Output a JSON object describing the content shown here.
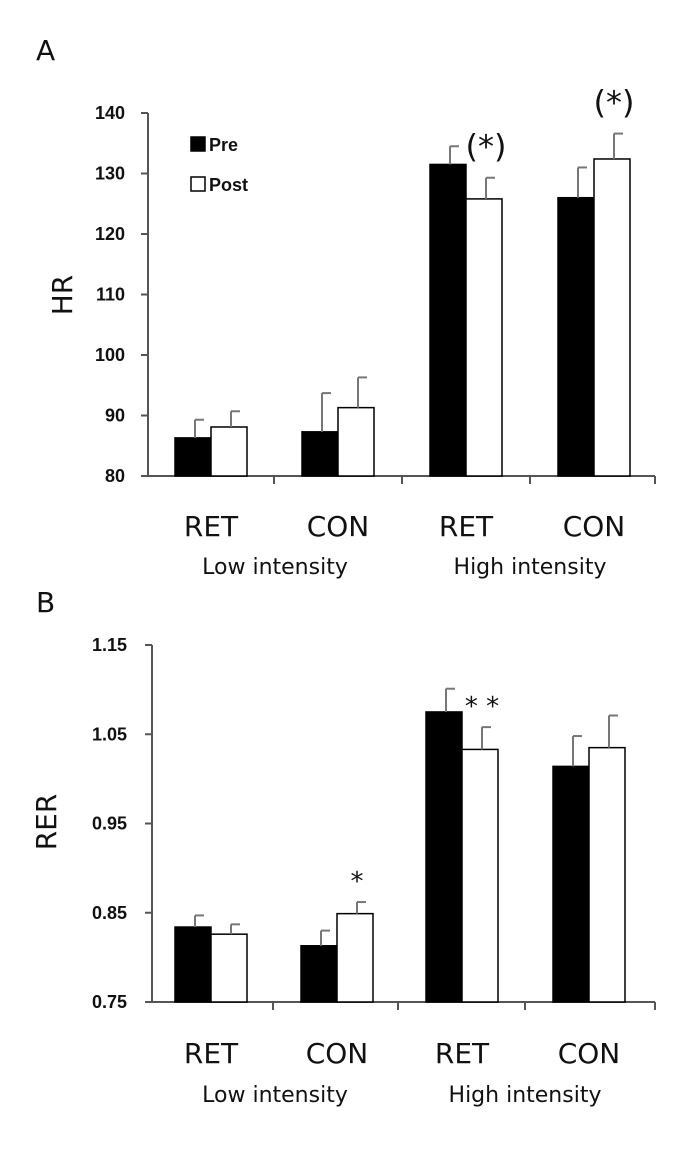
{
  "chart_data": [
    {
      "type": "bar",
      "panel": "A",
      "ylabel": "HR",
      "ylim": [
        80,
        140
      ],
      "yticks": [
        "80",
        "90",
        "100",
        "110",
        "120",
        "130",
        "140"
      ],
      "categories": [
        "RET",
        "CON",
        "RET",
        "CON"
      ],
      "groups": [
        "Low intensity",
        "High intensity"
      ],
      "legend": {
        "placement": "top-left",
        "entries": [
          "Pre",
          "Post"
        ]
      },
      "series": [
        {
          "name": "Pre",
          "color": "#000000",
          "values": [
            86.3,
            87.3,
            131.5,
            126.0
          ],
          "errors": [
            3.0,
            6.4,
            3.0,
            5.0
          ]
        },
        {
          "name": "Post",
          "color": "#ffffff",
          "values": [
            88.1,
            91.3,
            125.8,
            132.4
          ],
          "errors": [
            2.6,
            5.0,
            3.5,
            4.2
          ]
        }
      ],
      "annotations": [
        {
          "text": "(*)",
          "category_index": 2,
          "series": "Post"
        },
        {
          "text": "(*)",
          "category_index": 3,
          "series": "Post"
        }
      ]
    },
    {
      "type": "bar",
      "panel": "B",
      "ylabel": "RER",
      "ylim": [
        0.75,
        1.15
      ],
      "yticks": [
        "0.75",
        "0.85",
        "0.95",
        "1.05",
        "1.15"
      ],
      "categories": [
        "RET",
        "CON",
        "RET",
        "CON"
      ],
      "groups": [
        "Low intensity",
        "High intensity"
      ],
      "series": [
        {
          "name": "Pre",
          "color": "#000000",
          "values": [
            0.834,
            0.813,
            1.075,
            1.014
          ],
          "errors": [
            0.013,
            0.017,
            0.026,
            0.034
          ]
        },
        {
          "name": "Post",
          "color": "#ffffff",
          "values": [
            0.826,
            0.849,
            1.033,
            1.035
          ],
          "errors": [
            0.011,
            0.013,
            0.025,
            0.036
          ]
        }
      ],
      "annotations": [
        {
          "text": "*",
          "category_index": 1,
          "series": "Post"
        },
        {
          "text": "* *",
          "category_index": 2,
          "series": "Post"
        }
      ]
    }
  ]
}
